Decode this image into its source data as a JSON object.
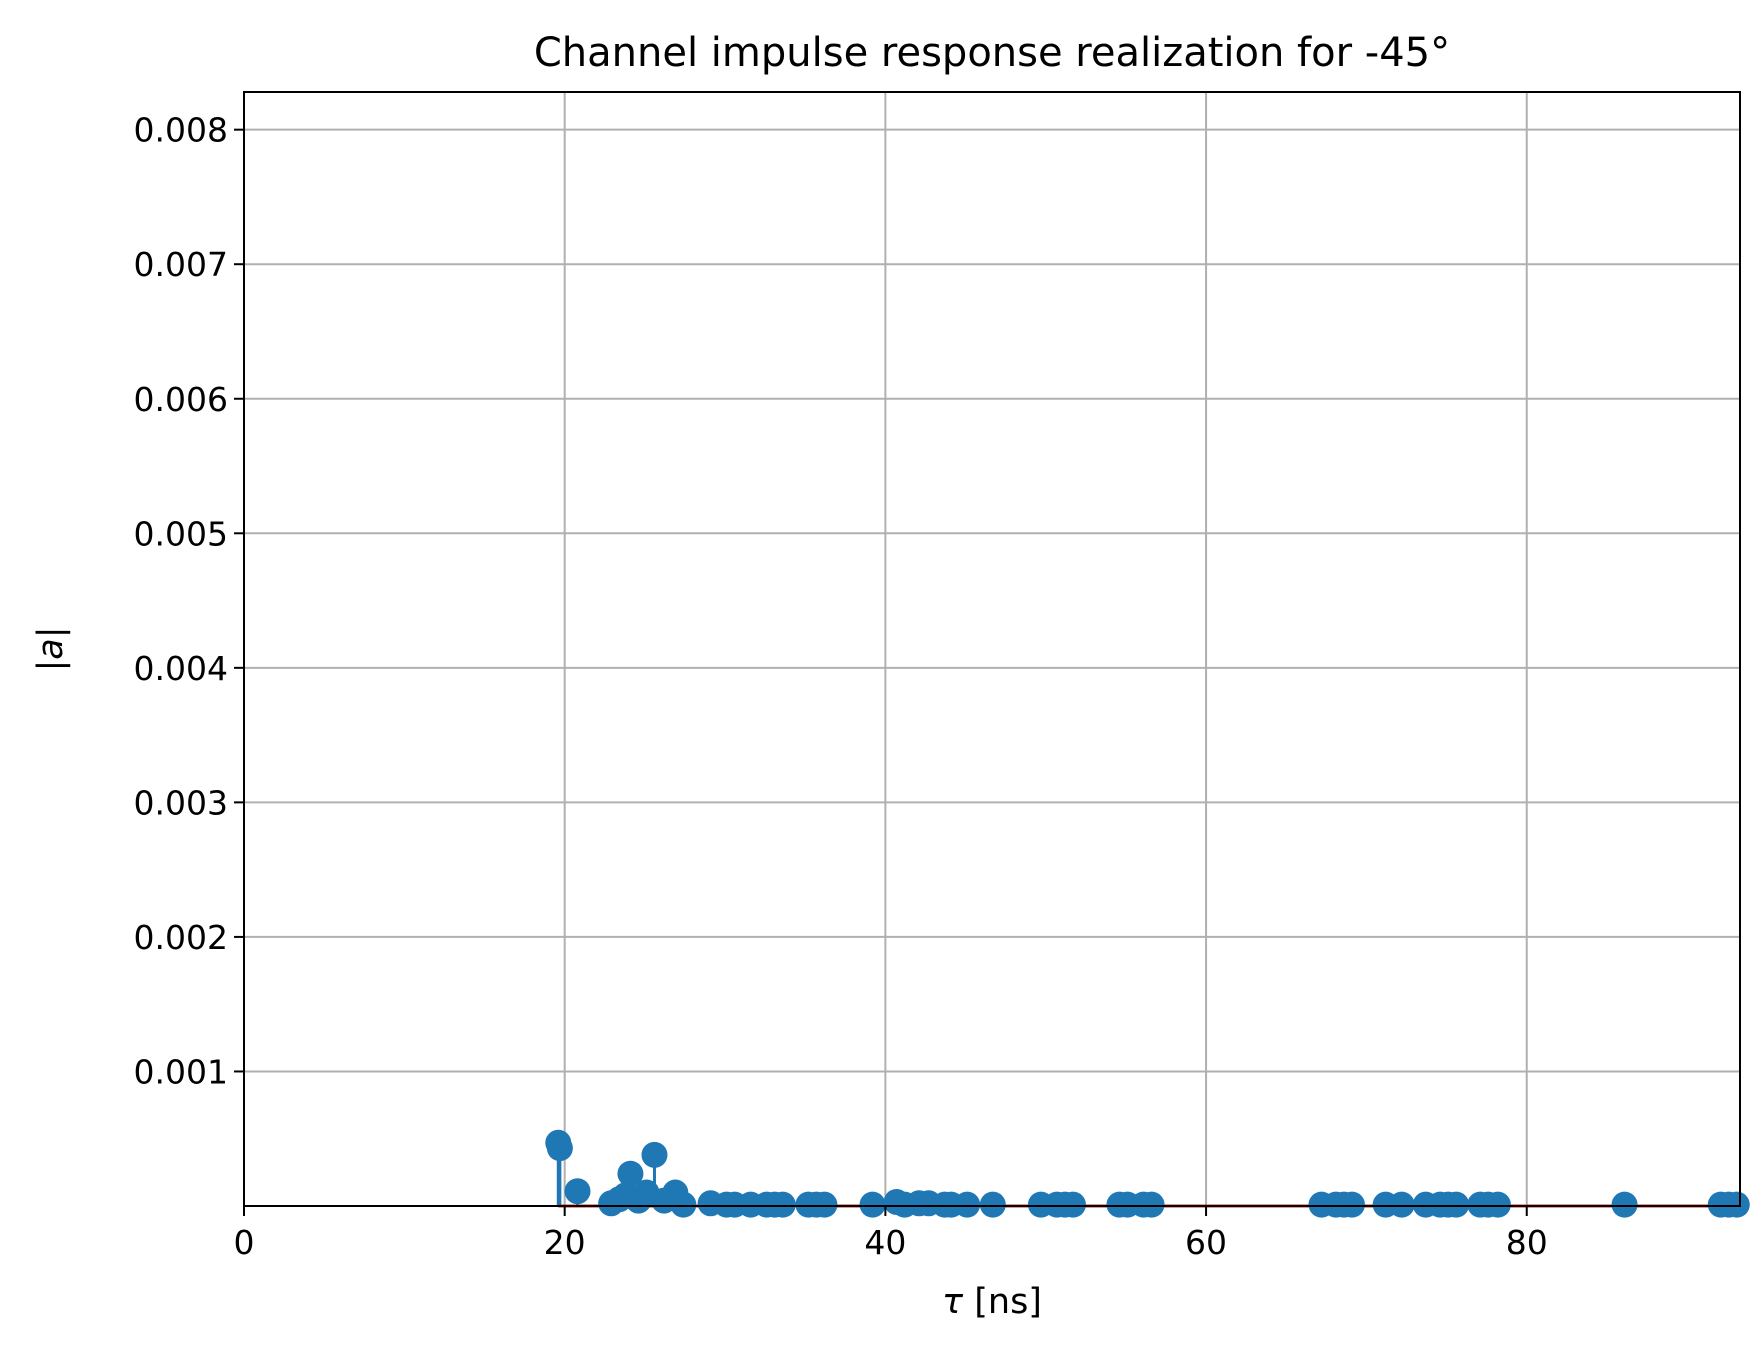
{
  "chart_data": {
    "type": "stem",
    "title": "Channel impulse response realization for -45°",
    "xlabel_symbol": "τ",
    "xlabel_unit": "[ns]",
    "ylabel_left": "|",
    "ylabel_symbol": "a",
    "ylabel_right": "|",
    "xlim": [
      0,
      93.3
    ],
    "ylim": [
      0,
      0.00828
    ],
    "xticks": [
      0,
      20,
      40,
      60,
      80
    ],
    "xtick_labels": [
      "0",
      "20",
      "40",
      "60",
      "80"
    ],
    "yticks": [
      0.001,
      0.002,
      0.003,
      0.004,
      0.005,
      0.006,
      0.007,
      0.008
    ],
    "ytick_labels": [
      "0.001",
      "0.002",
      "0.003",
      "0.004",
      "0.005",
      "0.006",
      "0.007",
      "0.008"
    ],
    "grid": true,
    "baseline": 0,
    "colors": {
      "markers": "#1f77b4",
      "stems": "#1f77b4",
      "baseline": "#d62728",
      "grid": "#b0b0b0",
      "axes": "#000000"
    },
    "series": [
      {
        "x": [
          19.6,
          19.7,
          20.8,
          22.9,
          23.4,
          23.8,
          24.1,
          24.6,
          25.1,
          25.6,
          26.2,
          26.9,
          27.4,
          29.1,
          30.1,
          30.6,
          31.6,
          32.6,
          33.1,
          33.6,
          35.2,
          35.7,
          36.2,
          39.2,
          40.7,
          41.2,
          42.1,
          42.7,
          43.7,
          44.1,
          45.1,
          46.7,
          49.7,
          50.7,
          51.2,
          51.7,
          54.6,
          55.1,
          56.1,
          56.6,
          67.2,
          68.1,
          68.6,
          69.1,
          71.2,
          72.2,
          73.7,
          74.6,
          75.1,
          75.6,
          77.1,
          77.6,
          78.2,
          86.1,
          92.1,
          92.6,
          93.1
        ],
        "y": [
          0.00047,
          0.00043,
          0.00011,
          2e-05,
          5e-05,
          8e-05,
          0.00024,
          4e-05,
          0.0001,
          0.00038,
          4e-05,
          0.0001,
          1e-05,
          2e-05,
          1e-05,
          1e-05,
          1e-05,
          1e-05,
          1e-05,
          1e-05,
          1e-05,
          1e-05,
          1e-05,
          1e-05,
          3e-05,
          1e-05,
          2e-05,
          2e-05,
          1e-05,
          1e-05,
          1e-05,
          1e-05,
          1e-05,
          1e-05,
          1e-05,
          1e-05,
          1e-05,
          1e-05,
          1e-05,
          1e-05,
          1e-05,
          1e-05,
          1e-05,
          1e-05,
          1e-05,
          1e-05,
          1e-05,
          1e-05,
          1e-05,
          1e-05,
          1e-05,
          1e-05,
          1e-05,
          1e-05,
          1e-05,
          1e-05,
          1e-05
        ]
      }
    ]
  }
}
